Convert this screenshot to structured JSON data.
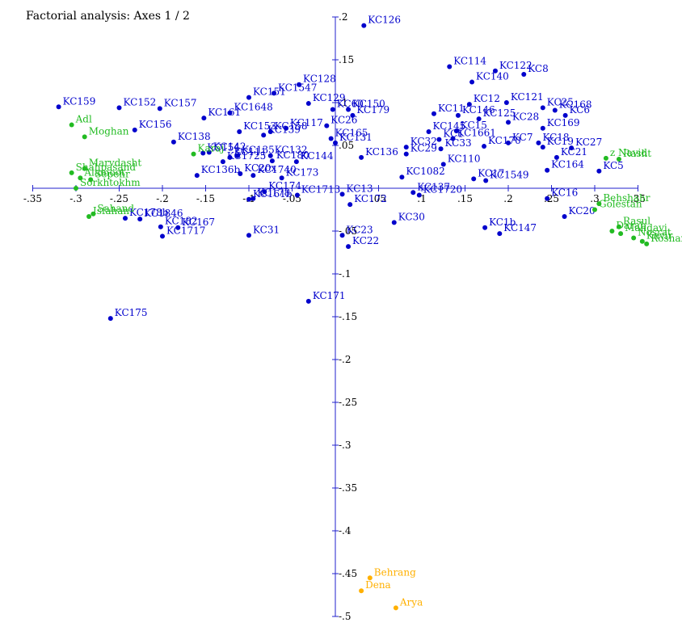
{
  "chart_data": {
    "type": "scatter",
    "title": "Factorial analysis: Axes 1 / 2",
    "xlim": [
      -0.35,
      0.35
    ],
    "ylim": [
      -0.5,
      0.2
    ],
    "grid": false,
    "x_tick_labels": [
      {
        "value": -0.35,
        "label": "-.35"
      },
      {
        "value": -0.3,
        "label": "-.3"
      },
      {
        "value": -0.25,
        "label": "-.25"
      },
      {
        "value": -0.2,
        "label": "-.2"
      },
      {
        "value": -0.15,
        "label": "-.15"
      },
      {
        "value": -0.1,
        "label": "-.1"
      },
      {
        "value": -0.05,
        "label": "-.05"
      },
      {
        "value": 0.05,
        "label": ".05"
      },
      {
        "value": 0.1,
        "label": ".1"
      },
      {
        "value": 0.15,
        "label": ".15"
      },
      {
        "value": 0.2,
        "label": ".2"
      },
      {
        "value": 0.25,
        "label": ".25"
      },
      {
        "value": 0.3,
        "label": ".3"
      },
      {
        "value": 0.35,
        "label": ".35"
      }
    ],
    "y_tick_labels": [
      {
        "value": 0.2,
        "label": ".2"
      },
      {
        "value": 0.15,
        "label": ".15"
      },
      {
        "value": 0.1,
        "label": ".1"
      },
      {
        "value": 0.05,
        "label": ".05"
      },
      {
        "value": -0.05,
        "label": "-.05"
      },
      {
        "value": -0.1,
        "label": "-.1"
      },
      {
        "value": -0.15,
        "label": "-.15"
      },
      {
        "value": -0.2,
        "label": "-.2"
      },
      {
        "value": -0.25,
        "label": "-.25"
      },
      {
        "value": -0.3,
        "label": "-.3"
      },
      {
        "value": -0.35,
        "label": "-.35"
      },
      {
        "value": -0.4,
        "label": "-.4"
      },
      {
        "value": -0.45,
        "label": "-.45"
      },
      {
        "value": -0.5,
        "label": "-.5"
      }
    ],
    "series": [
      {
        "color": "#0000cc",
        "points": [
          {
            "label": "KC126",
            "x": 0.033,
            "y": 0.19
          },
          {
            "label": "KC114",
            "x": 0.132,
            "y": 0.142
          },
          {
            "label": "KC122",
            "x": 0.185,
            "y": 0.137
          },
          {
            "label": "KC8",
            "x": 0.218,
            "y": 0.133
          },
          {
            "label": "KC140",
            "x": 0.158,
            "y": 0.124
          },
          {
            "label": "KC151",
            "x": -0.1,
            "y": 0.106
          },
          {
            "label": "KC128",
            "x": -0.042,
            "y": 0.121
          },
          {
            "label": "KC1547",
            "x": -0.071,
            "y": 0.111
          },
          {
            "label": "KC129",
            "x": -0.031,
            "y": 0.099
          },
          {
            "label": "KC12",
            "x": 0.155,
            "y": 0.098
          },
          {
            "label": "KC121",
            "x": 0.198,
            "y": 0.1
          },
          {
            "label": "KC25",
            "x": 0.24,
            "y": 0.094
          },
          {
            "label": "KC168",
            "x": 0.254,
            "y": 0.091
          },
          {
            "label": "KC6",
            "x": 0.266,
            "y": 0.085
          },
          {
            "label": "KC159",
            "x": -0.32,
            "y": 0.095
          },
          {
            "label": "KC152",
            "x": -0.25,
            "y": 0.094
          },
          {
            "label": "KC157",
            "x": -0.203,
            "y": 0.093
          },
          {
            "label": "KC1648",
            "x": -0.122,
            "y": 0.088
          },
          {
            "label": "KC161",
            "x": -0.152,
            "y": 0.082
          },
          {
            "label": "KC60",
            "x": -0.003,
            "y": 0.092
          },
          {
            "label": "KC150",
            "x": 0.015,
            "y": 0.092
          },
          {
            "label": "KC179",
            "x": 0.02,
            "y": 0.085
          },
          {
            "label": "KC11",
            "x": 0.114,
            "y": 0.087
          },
          {
            "label": "KC146",
            "x": 0.142,
            "y": 0.085
          },
          {
            "label": "KC125",
            "x": 0.166,
            "y": 0.081
          },
          {
            "label": "KC28",
            "x": 0.2,
            "y": 0.077
          },
          {
            "label": "KC169",
            "x": 0.24,
            "y": 0.07
          },
          {
            "label": "KC156",
            "x": -0.232,
            "y": 0.068
          },
          {
            "label": "KC117",
            "x": -0.057,
            "y": 0.07
          },
          {
            "label": "KC26",
            "x": -0.01,
            "y": 0.073
          },
          {
            "label": "KC15",
            "x": 0.14,
            "y": 0.067
          },
          {
            "label": "KC145",
            "x": 0.108,
            "y": 0.066
          },
          {
            "label": "KC158",
            "x": -0.075,
            "y": 0.066
          },
          {
            "label": "KC139",
            "x": -0.083,
            "y": 0.062
          },
          {
            "label": "KC165",
            "x": -0.005,
            "y": 0.058
          },
          {
            "label": "KC153",
            "x": -0.111,
            "y": 0.066
          },
          {
            "label": "KC131",
            "x": 0.0,
            "y": 0.053
          },
          {
            "label": "KC7",
            "x": 0.2,
            "y": 0.053
          },
          {
            "label": "KC18",
            "x": 0.235,
            "y": 0.053
          },
          {
            "label": "KC1661",
            "x": 0.136,
            "y": 0.058
          },
          {
            "label": "KC1",
            "x": 0.12,
            "y": 0.057
          },
          {
            "label": "KC170",
            "x": 0.172,
            "y": 0.049
          },
          {
            "label": "KC138",
            "x": -0.187,
            "y": 0.054
          },
          {
            "label": "KC142",
            "x": -0.146,
            "y": 0.042
          },
          {
            "label": "KC32",
            "x": 0.082,
            "y": 0.048
          },
          {
            "label": "KC33",
            "x": 0.122,
            "y": 0.046
          },
          {
            "label": "KC154",
            "x": -0.153,
            "y": 0.041
          },
          {
            "label": "KC111",
            "x": -0.122,
            "y": 0.036
          },
          {
            "label": "KC135",
            "x": -0.113,
            "y": 0.038
          },
          {
            "label": "KC132",
            "x": -0.075,
            "y": 0.038
          },
          {
            "label": "KC19",
            "x": 0.24,
            "y": 0.048
          },
          {
            "label": "KC27",
            "x": 0.273,
            "y": 0.047
          },
          {
            "label": "KC21",
            "x": 0.256,
            "y": 0.036
          },
          {
            "label": "KC29",
            "x": 0.082,
            "y": 0.04
          },
          {
            "label": "KC136",
            "x": 0.03,
            "y": 0.036
          },
          {
            "label": "KC110",
            "x": 0.125,
            "y": 0.028
          },
          {
            "label": "KC164",
            "x": 0.245,
            "y": 0.021
          },
          {
            "label": "KC5",
            "x": 0.305,
            "y": 0.02
          },
          {
            "label": "KC1725",
            "x": -0.13,
            "y": 0.031
          },
          {
            "label": "KC144",
            "x": -0.045,
            "y": 0.031
          },
          {
            "label": "KC180",
            "x": -0.073,
            "y": 0.032
          },
          {
            "label": "KC1740",
            "x": -0.095,
            "y": 0.015
          },
          {
            "label": "KC20x",
            "x": -0.11,
            "y": 0.017
          },
          {
            "label": "KC173",
            "x": -0.062,
            "y": 0.012
          },
          {
            "label": "KC136b",
            "x": -0.16,
            "y": 0.015
          },
          {
            "label": "KC1082",
            "x": 0.077,
            "y": 0.013
          },
          {
            "label": "KC17",
            "x": 0.16,
            "y": 0.011
          },
          {
            "label": "KC1549",
            "x": 0.174,
            "y": 0.009
          },
          {
            "label": "KC174",
            "x": -0.082,
            "y": -0.004
          },
          {
            "label": "KC1713",
            "x": -0.044,
            "y": -0.008
          },
          {
            "label": "KC178",
            "x": -0.095,
            "y": -0.012
          },
          {
            "label": "KC161b",
            "x": -0.1,
            "y": -0.013
          },
          {
            "label": "KC13",
            "x": 0.008,
            "y": -0.007
          },
          {
            "label": "KC172",
            "x": 0.017,
            "y": -0.019
          },
          {
            "label": "KC137",
            "x": 0.09,
            "y": -0.005
          },
          {
            "label": "KC1720",
            "x": 0.097,
            "y": -0.008
          },
          {
            "label": "KC16",
            "x": 0.245,
            "y": -0.012
          },
          {
            "label": "KC20",
            "x": 0.265,
            "y": -0.033
          },
          {
            "label": "KC1846",
            "x": -0.226,
            "y": -0.036
          },
          {
            "label": "KC178b",
            "x": -0.243,
            "y": -0.035
          },
          {
            "label": "KC182",
            "x": -0.202,
            "y": -0.045
          },
          {
            "label": "KC167",
            "x": -0.182,
            "y": -0.046
          },
          {
            "label": "KC1717",
            "x": -0.2,
            "y": -0.056
          },
          {
            "label": "KC31",
            "x": -0.1,
            "y": -0.055
          },
          {
            "label": "KC23",
            "x": 0.008,
            "y": -0.055
          },
          {
            "label": "KC30",
            "x": 0.068,
            "y": -0.04
          },
          {
            "label": "KC22",
            "x": 0.015,
            "y": -0.068
          },
          {
            "label": "KC1b",
            "x": 0.173,
            "y": -0.046
          },
          {
            "label": "KC147",
            "x": 0.19,
            "y": -0.053
          },
          {
            "label": "KC171",
            "x": -0.031,
            "y": -0.132
          },
          {
            "label": "KC175",
            "x": -0.26,
            "y": -0.152
          }
        ]
      },
      {
        "color": "#22bb22",
        "points": [
          {
            "label": "Adl",
            "x": -0.305,
            "y": 0.074
          },
          {
            "label": "Moghan",
            "x": -0.29,
            "y": 0.06
          },
          {
            "label": "Karaj",
            "x": -0.164,
            "y": 0.04
          },
          {
            "label": "Marvdasht",
            "x": -0.29,
            "y": 0.023
          },
          {
            "label": "Alamoot",
            "x": -0.295,
            "y": 0.012
          },
          {
            "label": "Shahpasand",
            "x": -0.305,
            "y": 0.018
          },
          {
            "label": "Sepehr",
            "x": -0.283,
            "y": 0.01
          },
          {
            "label": "Sorkhtokhm",
            "x": -0.3,
            "y": 0.0
          },
          {
            "label": "Sahand",
            "x": -0.28,
            "y": -0.03
          },
          {
            "label": "Isfahan",
            "x": -0.285,
            "y": -0.033
          },
          {
            "label": "z Navid",
            "x": 0.313,
            "y": 0.035
          },
          {
            "label": "Rasht",
            "x": 0.328,
            "y": 0.034
          },
          {
            "label": "Behshahr",
            "x": 0.305,
            "y": -0.018
          },
          {
            "label": "Golestan",
            "x": 0.3,
            "y": -0.025
          },
          {
            "label": "Rasul",
            "x": 0.328,
            "y": -0.045
          },
          {
            "label": "Darab",
            "x": 0.32,
            "y": -0.05
          },
          {
            "label": "Mahdavi",
            "x": 0.33,
            "y": -0.053
          },
          {
            "label": "Nosrat",
            "x": 0.345,
            "y": -0.058
          },
          {
            "label": "Kavir",
            "x": 0.355,
            "y": -0.062
          },
          {
            "label": "Roshan",
            "x": 0.36,
            "y": -0.065
          }
        ]
      },
      {
        "color": "#ffb000",
        "points": [
          {
            "label": "Behrang",
            "x": 0.04,
            "y": -0.455
          },
          {
            "label": "Dena",
            "x": 0.03,
            "y": -0.47
          },
          {
            "label": "Arya",
            "x": 0.07,
            "y": -0.49
          }
        ]
      }
    ]
  }
}
